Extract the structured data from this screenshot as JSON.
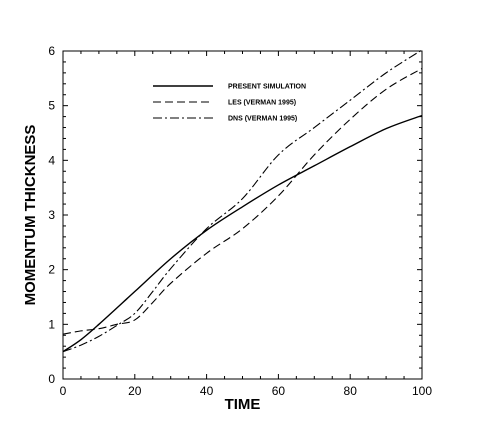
{
  "chart_data": {
    "type": "line",
    "title": "",
    "xlabel": "TIME",
    "ylabel": "MOMENTUM THICKNESS",
    "xlim": [
      0,
      100
    ],
    "ylim": [
      0,
      6
    ],
    "xticks": [
      "0",
      "20",
      "40",
      "60",
      "80",
      "100"
    ],
    "yticks": [
      "0",
      "1",
      "2",
      "3",
      "4",
      "5",
      "6"
    ],
    "grid": false,
    "legend_position": "top-center",
    "series": [
      {
        "name": "PRESENT SIMULATION",
        "style": "solid",
        "x": [
          0,
          5,
          10,
          20,
          30,
          40,
          50,
          60,
          70,
          80,
          90,
          100
        ],
        "y": [
          0.5,
          0.72,
          1.0,
          1.6,
          2.2,
          2.72,
          3.15,
          3.55,
          3.9,
          4.25,
          4.58,
          4.82
        ]
      },
      {
        "name": "LES (VERMAN 1995)",
        "style": "dashed",
        "x": [
          0,
          5,
          10,
          15,
          20,
          25,
          30,
          40,
          50,
          60,
          70,
          80,
          90,
          100
        ],
        "y": [
          0.82,
          0.88,
          0.92,
          1.0,
          1.08,
          1.4,
          1.75,
          2.3,
          2.75,
          3.35,
          4.1,
          4.75,
          5.3,
          5.68
        ]
      },
      {
        "name": "DNS (VERMAN 1995)",
        "style": "dash-dot",
        "x": [
          0,
          5,
          10,
          15,
          20,
          25,
          30,
          40,
          50,
          60,
          70,
          80,
          90,
          100
        ],
        "y": [
          0.5,
          0.62,
          0.78,
          0.98,
          1.2,
          1.6,
          2.02,
          2.75,
          3.3,
          4.1,
          4.6,
          5.1,
          5.6,
          6.02
        ]
      }
    ]
  }
}
